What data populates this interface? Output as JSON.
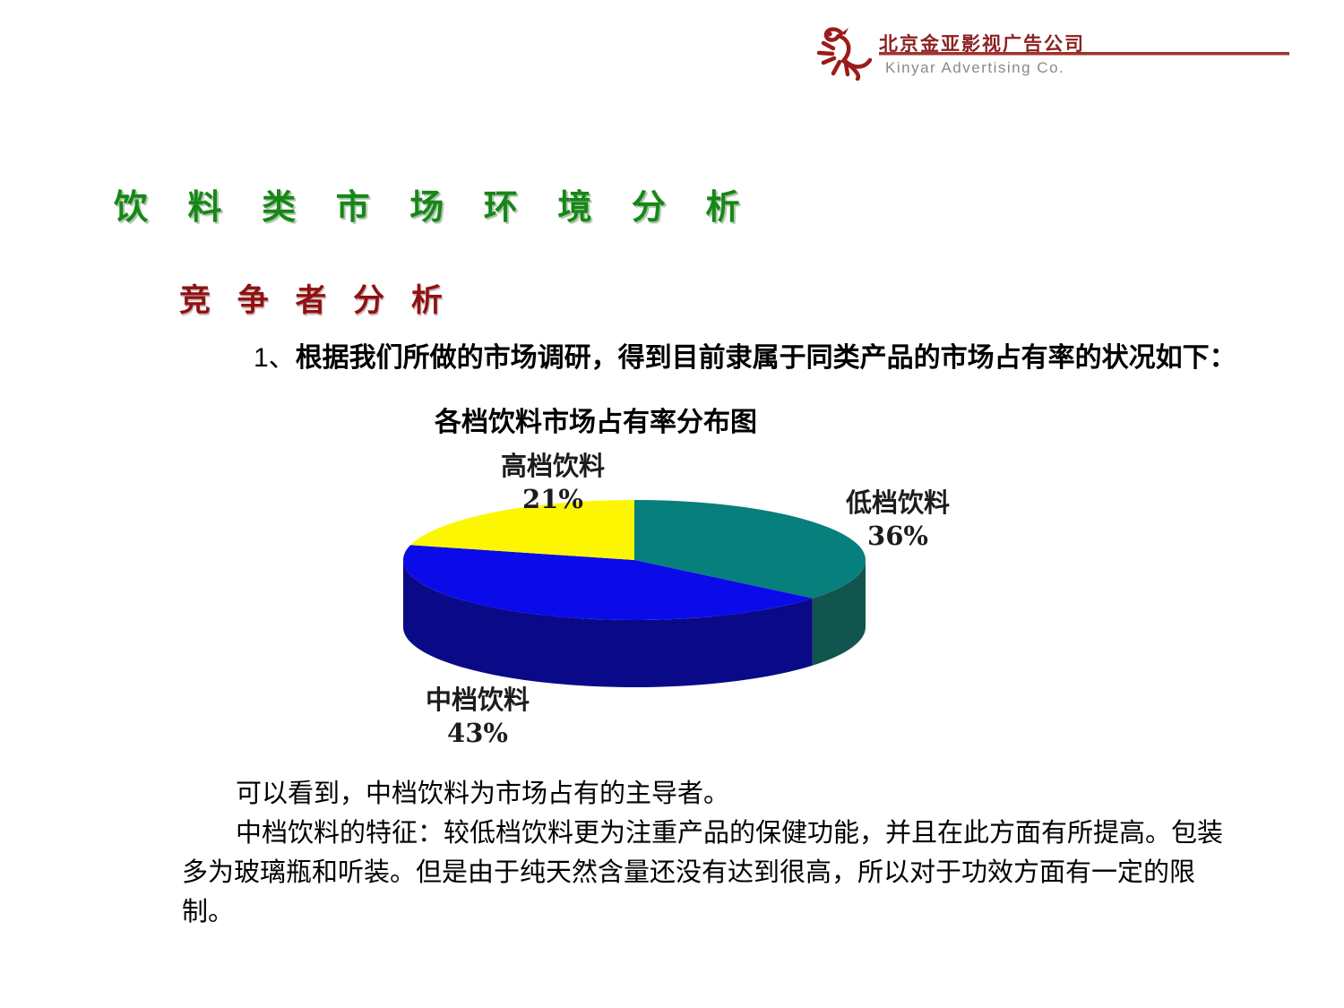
{
  "header": {
    "brand_cn": "北京金亚影视广告公司",
    "brand_en": "Kinyar  Advertising Co.",
    "accent_color": "#9b1b1b"
  },
  "page_title": "饮 料 类 市 场 环 境 分 析",
  "section_title": "竞 争 者 分 析",
  "intro": {
    "number": "1、",
    "text": "根据我们所做的市场调研，得到目前隶属于同类产品的市场占有率的状况如下："
  },
  "chart_data": {
    "type": "pie",
    "style": "3d",
    "title": "各档饮料市场占有率分布图",
    "start_angle_deg": 0,
    "direction": "clockwise",
    "legend_position": "none",
    "slices": [
      {
        "label": "低档饮料",
        "value_pct": 36,
        "pct_text": "36%",
        "color": "#067f7d",
        "side_color": "#12554e"
      },
      {
        "label": "中档饮料",
        "value_pct": 43,
        "pct_text": "43%",
        "color": "#0b0bea",
        "side_color": "#0a0a88"
      },
      {
        "label": "高档饮料",
        "value_pct": 21,
        "pct_text": "21%",
        "color": "#fdf602",
        "side_color": "#b3ad00"
      }
    ]
  },
  "notes": {
    "p1": "可以看到，中档饮料为市场占有的主导者。",
    "p2": "中档饮料的特征：较低档饮料更为注重产品的保健功能，并且在此方面有所提高。包装多为玻璃瓶和听装。但是由于纯天然含量还没有达到很高，所以对于功效方面有一定的限制。"
  }
}
